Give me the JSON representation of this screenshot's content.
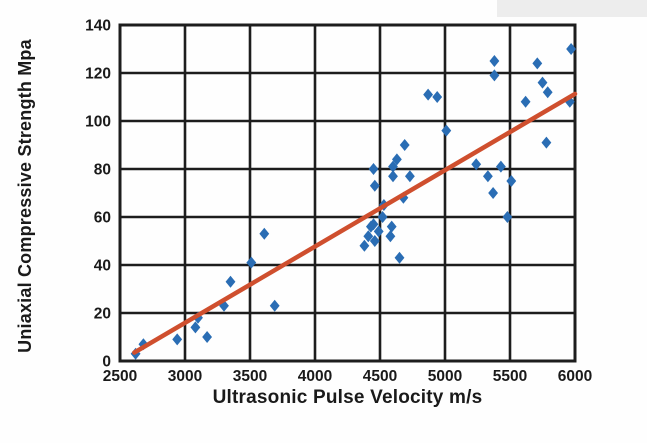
{
  "chart_data": {
    "type": "scatter",
    "title": "",
    "xlabel": "Ultrasonic Pulse Velocity m/s",
    "ylabel": "Uniaxial Compressive Strength Mpa",
    "xlim": [
      2500,
      6000
    ],
    "ylim": [
      0,
      140
    ],
    "x_ticks": [
      2500,
      3000,
      3500,
      4000,
      4500,
      5000,
      5500,
      6000
    ],
    "y_ticks": [
      0,
      20,
      40,
      60,
      80,
      100,
      120,
      140
    ],
    "grid": true,
    "legend_position": "none",
    "series": [
      {
        "name": "ucs-vs-upv-points",
        "type": "scatter",
        "marker": "diamond",
        "color": "#2a6db4",
        "points": [
          [
            2620,
            3
          ],
          [
            2680,
            7
          ],
          [
            2940,
            9
          ],
          [
            3080,
            14
          ],
          [
            3100,
            18
          ],
          [
            3170,
            10
          ],
          [
            3300,
            23
          ],
          [
            3350,
            33
          ],
          [
            3510,
            41
          ],
          [
            3610,
            53
          ],
          [
            3690,
            23
          ],
          [
            4380,
            48
          ],
          [
            4410,
            52
          ],
          [
            4430,
            56
          ],
          [
            4450,
            57
          ],
          [
            4450,
            80
          ],
          [
            4460,
            50
          ],
          [
            4460,
            73
          ],
          [
            4490,
            54
          ],
          [
            4520,
            60
          ],
          [
            4530,
            65
          ],
          [
            4580,
            52
          ],
          [
            4590,
            56
          ],
          [
            4600,
            77
          ],
          [
            4600,
            81
          ],
          [
            4630,
            84
          ],
          [
            4650,
            43
          ],
          [
            4680,
            68
          ],
          [
            4690,
            90
          ],
          [
            4730,
            77
          ],
          [
            4870,
            111
          ],
          [
            4940,
            110
          ],
          [
            5010,
            96
          ],
          [
            5240,
            82
          ],
          [
            5330,
            77
          ],
          [
            5370,
            70
          ],
          [
            5380,
            119
          ],
          [
            5380,
            125
          ],
          [
            5430,
            81
          ],
          [
            5480,
            60
          ],
          [
            5510,
            75
          ],
          [
            5620,
            108
          ],
          [
            5710,
            124
          ],
          [
            5750,
            116
          ],
          [
            5780,
            91
          ],
          [
            5790,
            112
          ],
          [
            5960,
            108
          ],
          [
            5970,
            130
          ]
        ]
      },
      {
        "name": "trend-line",
        "type": "line",
        "color": "#cf4f2e",
        "points": [
          [
            2610,
            3.5
          ],
          [
            6000,
            111.3
          ]
        ]
      }
    ]
  },
  "style": {
    "grid_color": "#1d1d1d",
    "tick_text_color": "#1a1a1a",
    "marker_color": "#2a6db4",
    "trend_color": "#cf4f2e",
    "background": "#fefefe"
  }
}
